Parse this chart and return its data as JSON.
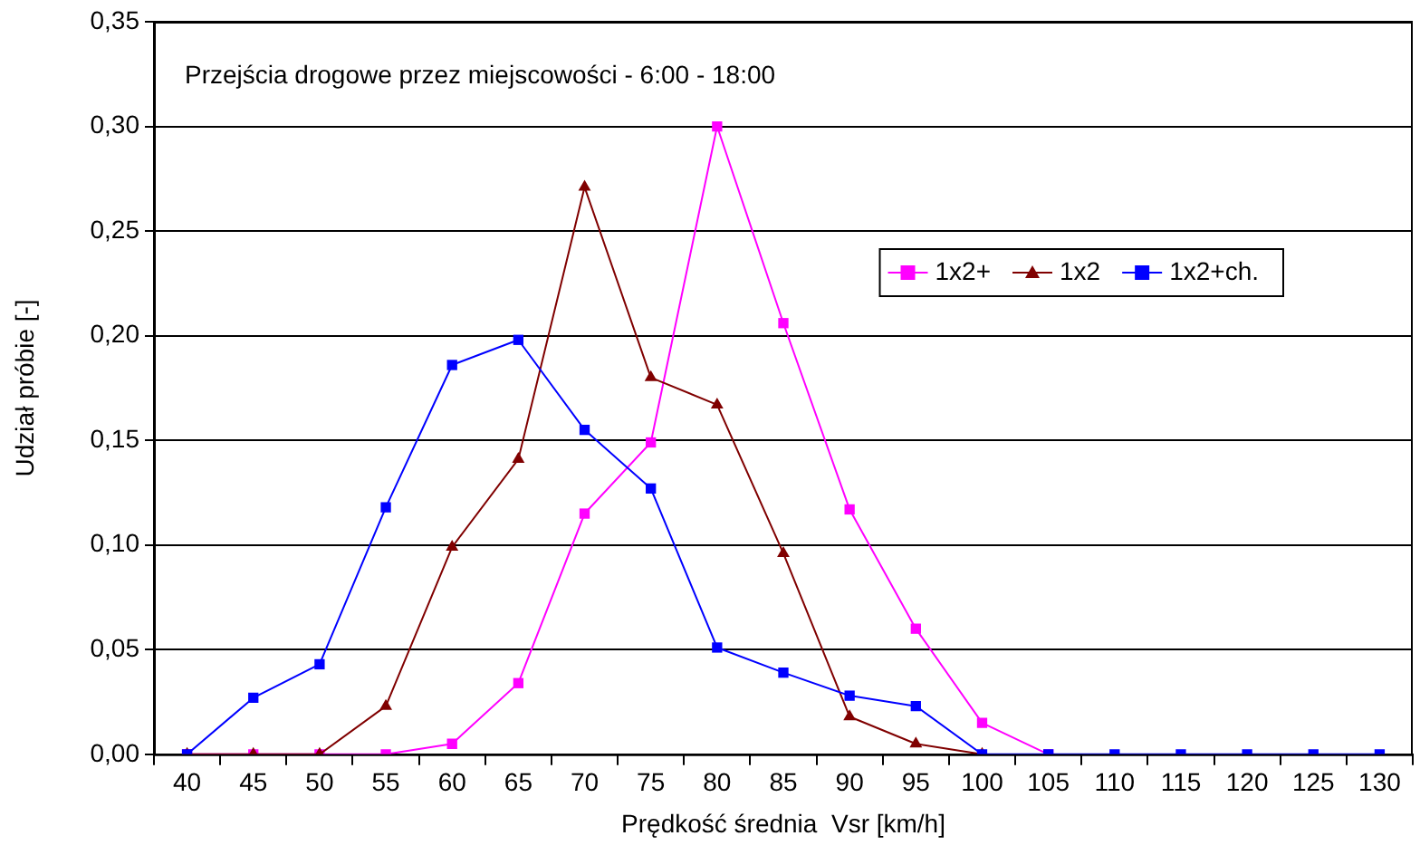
{
  "chart_data": {
    "type": "line",
    "title": "Przejścia drogowe przez miejscowości - 6:00 - 18:00",
    "xlabel": "Prędkość średnia  Vsr [km/h]",
    "ylabel": "Udział próbie [-]",
    "categories": [
      "40",
      "45",
      "50",
      "55",
      "60",
      "65",
      "70",
      "75",
      "80",
      "85",
      "90",
      "95",
      "100",
      "105",
      "110",
      "115",
      "120",
      "125",
      "130"
    ],
    "series": [
      {
        "name": "1x2+",
        "color": "#ff00ff",
        "marker": "square",
        "values": [
          0,
          0,
          0,
          0,
          0.005,
          0.034,
          0.115,
          0.149,
          0.3,
          0.206,
          0.117,
          0.06,
          0.015,
          0,
          null,
          null,
          null,
          null,
          null
        ]
      },
      {
        "name": "1x2",
        "color": "#800000",
        "marker": "triangle",
        "values": [
          0,
          0,
          0,
          0.023,
          0.099,
          0.141,
          0.271,
          0.18,
          0.167,
          0.096,
          0.018,
          0.005,
          0,
          null,
          null,
          null,
          null,
          null,
          null
        ]
      },
      {
        "name": "1x2+ch.",
        "color": "#0000ff",
        "marker": "square",
        "values": [
          0,
          0.027,
          0.043,
          0.118,
          0.186,
          0.198,
          0.155,
          0.127,
          0.051,
          0.039,
          0.028,
          0.023,
          0,
          0,
          0,
          0,
          0,
          0,
          0
        ]
      }
    ],
    "ylim": [
      0,
      0.35
    ],
    "yticks": [
      {
        "value": 0,
        "label": "0,00"
      },
      {
        "value": 0.05,
        "label": "0,05"
      },
      {
        "value": 0.1,
        "label": "0,10"
      },
      {
        "value": 0.15,
        "label": "0,15"
      },
      {
        "value": 0.2,
        "label": "0,20"
      },
      {
        "value": 0.25,
        "label": "0,25"
      },
      {
        "value": 0.3,
        "label": "0,30"
      },
      {
        "value": 0.35,
        "label": "0,35"
      }
    ],
    "grid": "y",
    "legend": "top right",
    "line_style": "solid"
  }
}
